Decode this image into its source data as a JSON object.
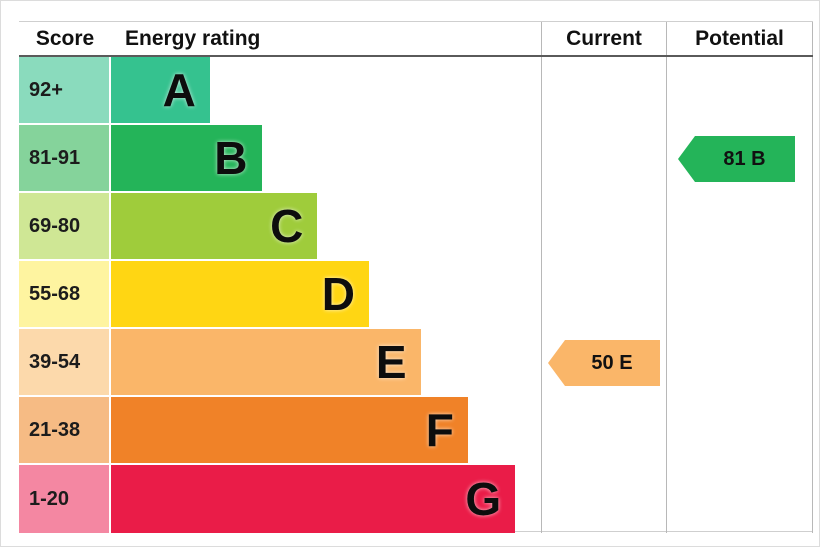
{
  "header": {
    "score": "Score",
    "energy_rating": "Energy rating",
    "current": "Current",
    "potential": "Potential"
  },
  "chart_data": {
    "type": "bar",
    "title": "Energy rating",
    "categories": [
      "A",
      "B",
      "C",
      "D",
      "E",
      "F",
      "G"
    ],
    "bands": [
      {
        "score": "92+",
        "letter": "A",
        "bar_color": "#35c28f",
        "tint_color": "#8adbbd",
        "width": "23%"
      },
      {
        "score": "81-91",
        "letter": "B",
        "bar_color": "#24b459",
        "tint_color": "#85d39b",
        "width": "35%"
      },
      {
        "score": "69-80",
        "letter": "C",
        "bar_color": "#9fcc3b",
        "tint_color": "#cfe795",
        "width": "48%"
      },
      {
        "score": "55-68",
        "letter": "D",
        "bar_color": "#ffd613",
        "tint_color": "#fef4a0",
        "width": "60%"
      },
      {
        "score": "39-54",
        "letter": "E",
        "bar_color": "#fab669",
        "tint_color": "#fcd9ab",
        "width": "72%"
      },
      {
        "score": "21-38",
        "letter": "F",
        "bar_color": "#f08228",
        "tint_color": "#f6bb84",
        "width": "83%"
      },
      {
        "score": "1-20",
        "letter": "G",
        "bar_color": "#ea1c48",
        "tint_color": "#f487a2",
        "width": "94%"
      }
    ],
    "current": {
      "value": 50,
      "band": "E",
      "label": "50 E",
      "color": "#fab669",
      "row_index": 4
    },
    "potential": {
      "value": 81,
      "band": "B",
      "label": "81 B",
      "color": "#24b459",
      "row_index": 1
    }
  }
}
